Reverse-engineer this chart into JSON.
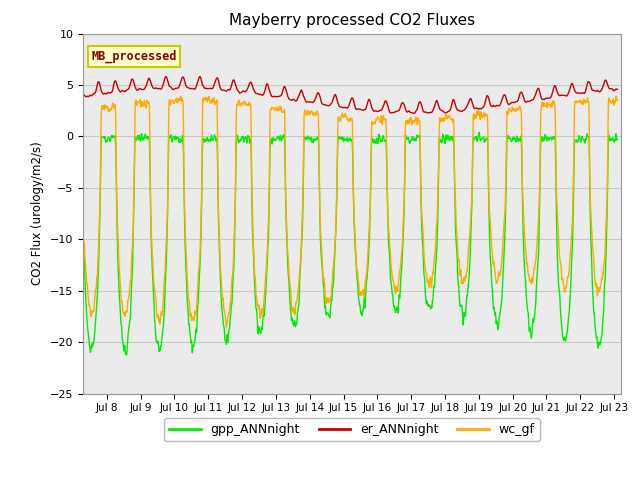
{
  "title": "Mayberry processed CO2 Fluxes",
  "ylabel": "CO2 Flux (urology/m2/s)",
  "xlabel": "",
  "ylim": [
    -25,
    10
  ],
  "yticks": [
    -25,
    -20,
    -15,
    -10,
    -5,
    0,
    5,
    10
  ],
  "xlim_days": [
    7.3,
    23.2
  ],
  "xtick_days": [
    8,
    9,
    10,
    11,
    12,
    13,
    14,
    15,
    16,
    17,
    18,
    19,
    20,
    21,
    22,
    23
  ],
  "xtick_labels": [
    "Jul 8",
    "Jul 9",
    "Jul 10",
    "Jul 11",
    "Jul 12",
    "Jul 13",
    "Jul 14",
    "Jul 15",
    "Jul 16",
    "Jul 17",
    "Jul 18",
    "Jul 19",
    "Jul 20",
    "Jul 21",
    "Jul 22",
    "Jul 23"
  ],
  "color_gpp": "#00ee00",
  "color_er": "#cc0000",
  "color_wc": "#ffaa00",
  "label_gpp": "gpp_ANNnight",
  "label_er": "er_ANNnight",
  "label_wc": "wc_gf",
  "legend_title": "MB_processed",
  "legend_title_color": "#8b0000",
  "legend_bg": "#ffffcc",
  "legend_edge": "#cccc00",
  "n_points": 3600,
  "start_day": 7.33,
  "end_day": 23.1,
  "grid_color": "#c8c8c8",
  "bg_color": "#ebebeb",
  "line_width": 1.0
}
